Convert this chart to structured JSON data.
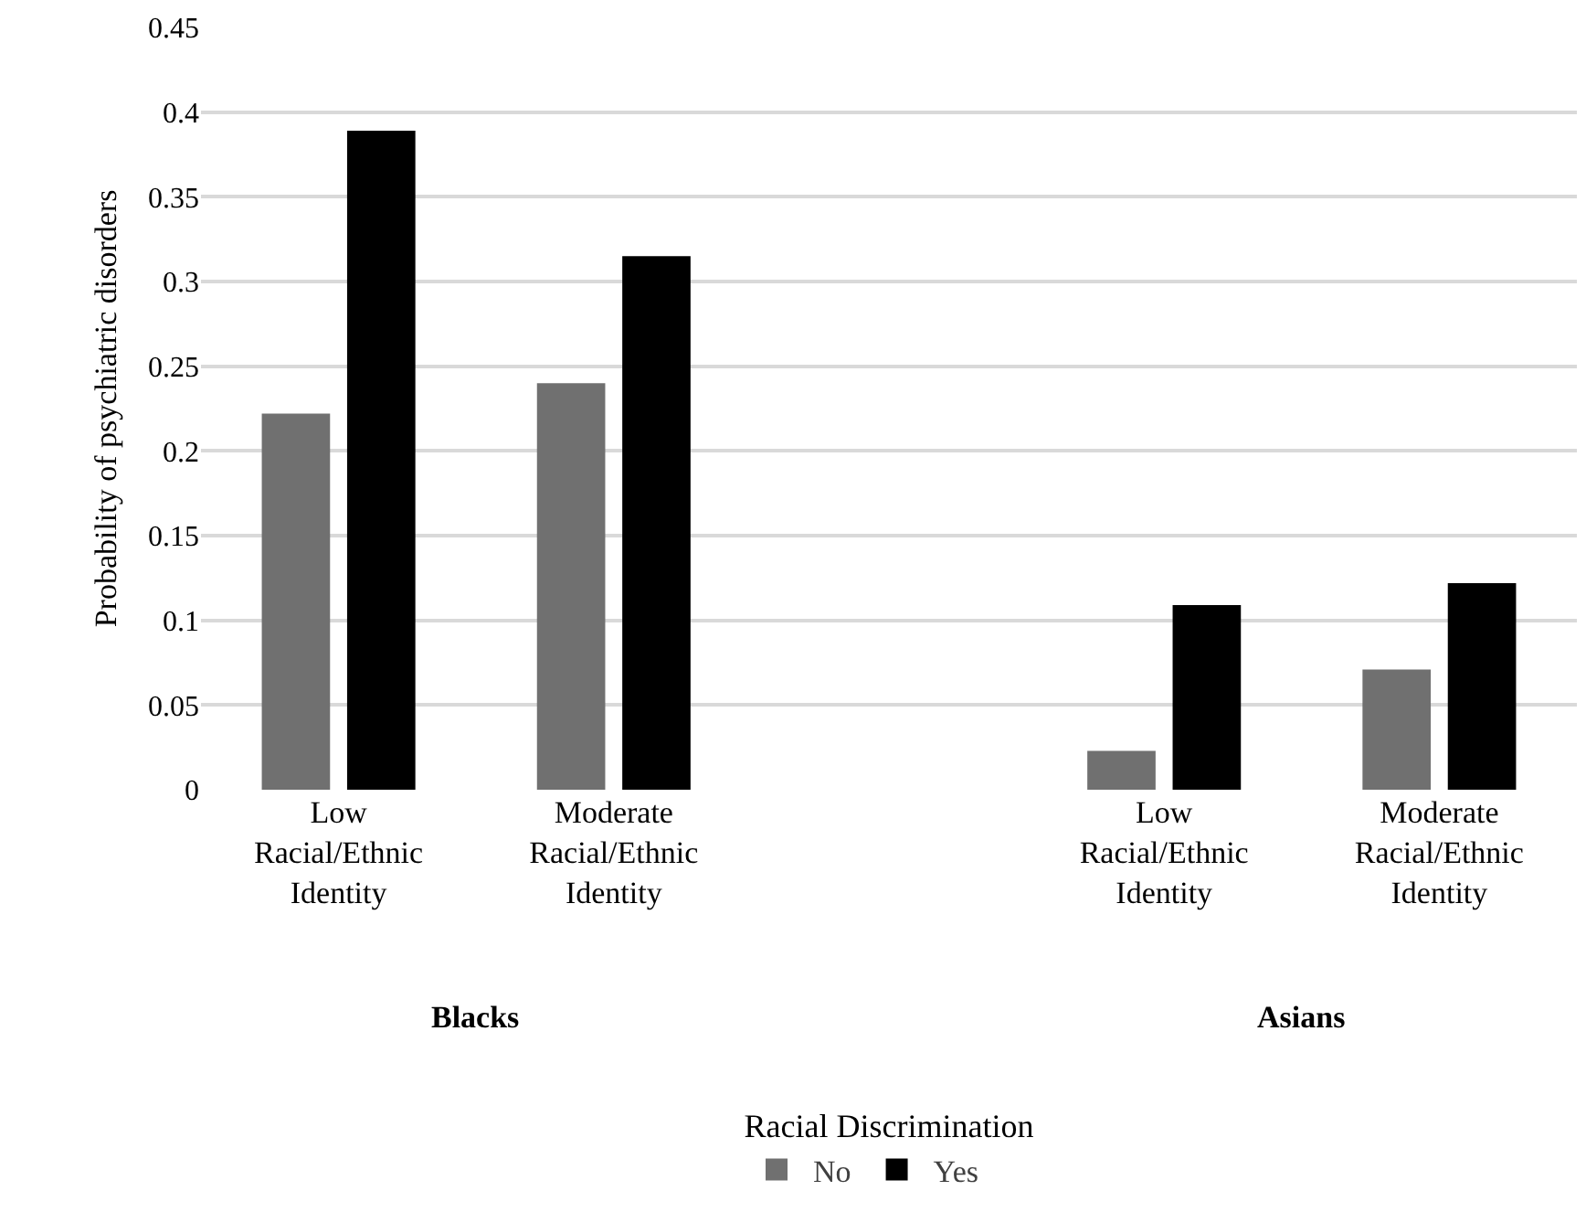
{
  "chart_data": {
    "type": "bar",
    "ylabel": "Probability of psychiatric disorders",
    "legend_title": "Racial Discrimination",
    "categories": [
      "Low Racial/Ethnic Identity",
      "Moderate Racial/Ethnic Identity",
      null,
      "Low Racial/Ethnic Identity",
      "Moderate Racial/Ethnic Identity"
    ],
    "series": [
      {
        "name": "No",
        "color": "#707070",
        "values": [
          0.222,
          0.24,
          null,
          0.023,
          0.071
        ]
      },
      {
        "name": "Yes",
        "color": "#000000",
        "values": [
          0.389,
          0.315,
          null,
          0.109,
          0.122
        ]
      }
    ],
    "ylim": [
      0,
      0.45
    ],
    "yticks": [
      0,
      0.05,
      0.1,
      0.15,
      0.2,
      0.25,
      0.3,
      0.35,
      0.4,
      0.45
    ],
    "annotations": [
      "Blacks",
      "Asians"
    ],
    "grid": "y",
    "legend": "bottom"
  }
}
